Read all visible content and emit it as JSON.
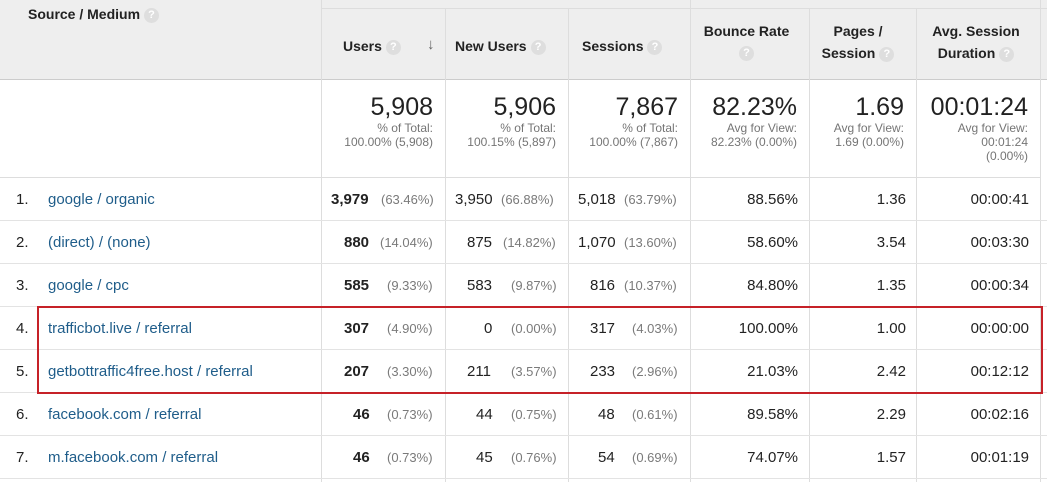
{
  "headers": {
    "source": "Source / Medium",
    "users": "Users",
    "new_users": "New Users",
    "sessions": "Sessions",
    "bounce_rate": "Bounce Rate",
    "pages_1": "Pages /",
    "pages_2": "Session",
    "avg_1": "Avg. Session",
    "avg_2": "Duration",
    "help_glyph": "?",
    "sort_glyph": "↓"
  },
  "totals": {
    "users": {
      "value": "5,908",
      "line1": "% of Total:",
      "line2": "100.00% (5,908)"
    },
    "new_users": {
      "value": "5,906",
      "line1": "% of Total:",
      "line2": "100.15% (5,897)"
    },
    "sessions": {
      "value": "7,867",
      "line1": "% of Total:",
      "line2": "100.00% (7,867)"
    },
    "bounce_rate": {
      "value": "82.23%",
      "line1": "Avg for View:",
      "line2": "82.23% (0.00%)"
    },
    "pages": {
      "value": "1.69",
      "line1": "Avg for View:",
      "line2": "1.69 (0.00%)"
    },
    "duration": {
      "value": "00:01:24",
      "line1": "Avg for View:",
      "line2": "00:01:24",
      "line3": "(0.00%)"
    }
  },
  "rows": [
    {
      "num": "1.",
      "source": "google / organic",
      "users": "3,979",
      "users_pct": "(63.46%)",
      "new_users": "3,950",
      "new_users_pct": "(66.88%)",
      "sessions": "5,018",
      "sessions_pct": "(63.79%)",
      "bounce": "88.56%",
      "pages": "1.36",
      "duration": "00:00:41"
    },
    {
      "num": "2.",
      "source": "(direct) / (none)",
      "users": "880",
      "users_pct": "(14.04%)",
      "new_users": "875",
      "new_users_pct": "(14.82%)",
      "sessions": "1,070",
      "sessions_pct": "(13.60%)",
      "bounce": "58.60%",
      "pages": "3.54",
      "duration": "00:03:30"
    },
    {
      "num": "3.",
      "source": "google / cpc",
      "users": "585",
      "users_pct": "(9.33%)",
      "new_users": "583",
      "new_users_pct": "(9.87%)",
      "sessions": "816",
      "sessions_pct": "(10.37%)",
      "bounce": "84.80%",
      "pages": "1.35",
      "duration": "00:00:34"
    },
    {
      "num": "4.",
      "source": "trafficbot.live / referral",
      "users": "307",
      "users_pct": "(4.90%)",
      "new_users": "0",
      "new_users_pct": "(0.00%)",
      "sessions": "317",
      "sessions_pct": "(4.03%)",
      "bounce": "100.00%",
      "pages": "1.00",
      "duration": "00:00:00"
    },
    {
      "num": "5.",
      "source": "getbottraffic4free.host / referral",
      "users": "207",
      "users_pct": "(3.30%)",
      "new_users": "211",
      "new_users_pct": "(3.57%)",
      "sessions": "233",
      "sessions_pct": "(2.96%)",
      "bounce": "21.03%",
      "pages": "2.42",
      "duration": "00:12:12"
    },
    {
      "num": "6.",
      "source": "facebook.com / referral",
      "users": "46",
      "users_pct": "(0.73%)",
      "new_users": "44",
      "new_users_pct": "(0.75%)",
      "sessions": "48",
      "sessions_pct": "(0.61%)",
      "bounce": "89.58%",
      "pages": "2.29",
      "duration": "00:02:16"
    },
    {
      "num": "7.",
      "source": "m.facebook.com / referral",
      "users": "46",
      "users_pct": "(0.73%)",
      "new_users": "45",
      "new_users_pct": "(0.76%)",
      "sessions": "54",
      "sessions_pct": "(0.69%)",
      "bounce": "74.07%",
      "pages": "1.57",
      "duration": "00:01:19"
    }
  ]
}
